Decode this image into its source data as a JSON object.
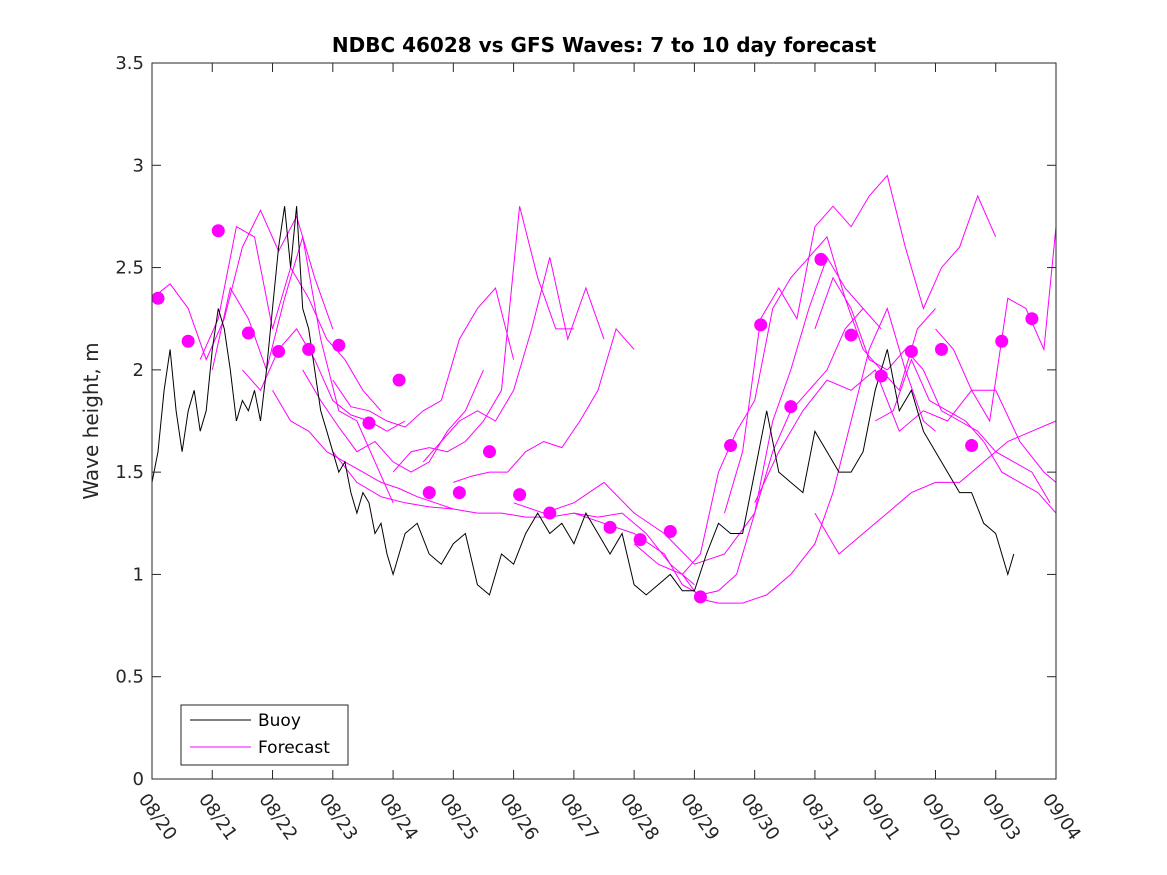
{
  "chart_data": {
    "type": "line",
    "title": "NDBC 46028 vs GFS Waves: 7 to 10 day forecast",
    "xlabel": "",
    "ylabel": "Wave height, m",
    "xlim": [
      0,
      15
    ],
    "ylim": [
      0,
      3.5
    ],
    "xticks": [
      0,
      1,
      2,
      3,
      4,
      5,
      6,
      7,
      8,
      9,
      10,
      11,
      12,
      13,
      14,
      15
    ],
    "xtick_labels": [
      "08/20",
      "08/21",
      "08/22",
      "08/23",
      "08/24",
      "08/25",
      "08/26",
      "08/27",
      "08/28",
      "08/29",
      "08/30",
      "08/31",
      "09/01",
      "09/02",
      "09/03",
      "09/04"
    ],
    "yticks": [
      0,
      0.5,
      1,
      1.5,
      2,
      2.5,
      3,
      3.5
    ],
    "ytick_labels": [
      "0",
      "0.5",
      "1",
      "1.5",
      "2",
      "2.5",
      "3",
      "3.5"
    ],
    "legend": {
      "location": "bottom-left",
      "entries": [
        "Buoy",
        "Forecast"
      ]
    },
    "colors": {
      "buoy": "#000000",
      "forecast": "#ff00ff",
      "axes": "#262626"
    },
    "buoy": {
      "name": "Buoy",
      "x": [
        0,
        0.1,
        0.2,
        0.3,
        0.4,
        0.5,
        0.6,
        0.7,
        0.8,
        0.9,
        1.0,
        1.1,
        1.2,
        1.3,
        1.4,
        1.5,
        1.6,
        1.7,
        1.8,
        1.9,
        2.0,
        2.1,
        2.2,
        2.3,
        2.4,
        2.5,
        2.6,
        2.7,
        2.8,
        2.9,
        3.0,
        3.1,
        3.2,
        3.3,
        3.4,
        3.5,
        3.6,
        3.7,
        3.8,
        3.9,
        4.0,
        4.2,
        4.4,
        4.6,
        4.8,
        5.0,
        5.2,
        5.4,
        5.6,
        5.8,
        6.0,
        6.2,
        6.4,
        6.6,
        6.8,
        7.0,
        7.2,
        7.4,
        7.6,
        7.8,
        8.0,
        8.2,
        8.4,
        8.6,
        8.8,
        9.0,
        9.2,
        9.4,
        9.6,
        9.8,
        10.0,
        10.2,
        10.4,
        10.6,
        10.8,
        11.0,
        11.2,
        11.4,
        11.6,
        11.8,
        12.0,
        12.2,
        12.4,
        12.6,
        12.8,
        13.0,
        13.2,
        13.4,
        13.6,
        13.8,
        14.0,
        14.1,
        14.2,
        14.3
      ],
      "y": [
        1.45,
        1.6,
        1.9,
        2.1,
        1.8,
        1.6,
        1.8,
        1.9,
        1.7,
        1.8,
        2.1,
        2.3,
        2.2,
        2.0,
        1.75,
        1.85,
        1.8,
        1.9,
        1.75,
        2.0,
        2.3,
        2.6,
        2.8,
        2.5,
        2.8,
        2.3,
        2.2,
        2.0,
        1.8,
        1.7,
        1.6,
        1.5,
        1.55,
        1.4,
        1.3,
        1.4,
        1.35,
        1.2,
        1.25,
        1.1,
        1.0,
        1.2,
        1.25,
        1.1,
        1.05,
        1.15,
        1.2,
        0.95,
        0.9,
        1.1,
        1.05,
        1.2,
        1.3,
        1.2,
        1.25,
        1.15,
        1.3,
        1.2,
        1.1,
        1.2,
        0.95,
        0.9,
        0.95,
        1.0,
        0.92,
        0.92,
        1.1,
        1.25,
        1.2,
        1.2,
        1.5,
        1.8,
        1.5,
        1.45,
        1.4,
        1.7,
        1.6,
        1.5,
        1.5,
        1.6,
        1.9,
        2.1,
        1.8,
        1.9,
        1.7,
        1.6,
        1.5,
        1.4,
        1.4,
        1.25,
        1.2,
        1.1,
        1.0,
        1.1
      ]
    },
    "forecasts": [
      {
        "name": "Forecast",
        "x": [
          0,
          0.3,
          0.6,
          0.9,
          1.2,
          1.5,
          1.8,
          2.1,
          2.4,
          2.7,
          3.0
        ],
        "y": [
          2.35,
          2.42,
          2.3,
          2.05,
          2.25,
          2.6,
          2.78,
          2.58,
          2.75,
          2.45,
          2.2
        ]
      },
      {
        "name": "Forecast",
        "x": [
          0.8,
          1.1,
          1.4,
          1.7,
          2.0,
          2.3,
          2.6,
          2.9,
          3.2,
          3.5,
          3.8
        ],
        "y": [
          2.05,
          2.25,
          2.7,
          2.65,
          2.2,
          2.5,
          2.35,
          2.15,
          2.05,
          1.9,
          1.8
        ]
      },
      {
        "name": "Forecast",
        "x": [
          1.0,
          1.3,
          1.6,
          1.9,
          2.2,
          2.5,
          2.8,
          3.1,
          3.4,
          3.7,
          4.0
        ],
        "y": [
          2.0,
          2.4,
          2.25,
          2.0,
          2.35,
          2.65,
          2.15,
          1.8,
          1.75,
          1.55,
          1.35
        ]
      },
      {
        "name": "Forecast",
        "x": [
          1.5,
          1.8,
          2.1,
          2.4,
          2.7,
          3.0,
          3.3,
          3.6,
          3.9,
          4.2
        ],
        "y": [
          2.0,
          1.9,
          2.1,
          2.2,
          2.05,
          1.85,
          1.78,
          1.75,
          1.7,
          1.75
        ]
      },
      {
        "name": "Forecast",
        "x": [
          2.0,
          2.3,
          2.6,
          2.9,
          3.2,
          3.5,
          3.8,
          4.1,
          4.4,
          4.7,
          5.0
        ],
        "y": [
          1.9,
          1.75,
          1.7,
          1.6,
          1.55,
          1.5,
          1.45,
          1.42,
          1.38,
          1.35,
          1.32
        ]
      },
      {
        "name": "Forecast",
        "x": [
          2.5,
          2.8,
          3.1,
          3.4,
          3.7,
          4.0,
          4.3,
          4.6,
          4.9,
          5.2,
          5.5
        ],
        "y": [
          2.0,
          1.85,
          1.72,
          1.6,
          1.65,
          1.55,
          1.5,
          1.55,
          1.7,
          1.8,
          2.0
        ]
      },
      {
        "name": "Forecast",
        "x": [
          3.0,
          3.3,
          3.6,
          3.9,
          4.2,
          4.5,
          4.8,
          5.1,
          5.4,
          5.7,
          6.0
        ],
        "y": [
          1.95,
          1.82,
          1.8,
          1.75,
          1.72,
          1.8,
          1.85,
          2.15,
          2.3,
          2.4,
          2.05
        ]
      },
      {
        "name": "Forecast",
        "x": [
          4.0,
          4.3,
          4.6,
          4.9,
          5.2,
          5.5,
          5.8,
          6.1,
          6.4,
          6.7,
          7.0
        ],
        "y": [
          1.5,
          1.6,
          1.62,
          1.6,
          1.65,
          1.75,
          1.9,
          2.8,
          2.45,
          2.2,
          2.2
        ]
      },
      {
        "name": "Forecast",
        "x": [
          4.5,
          4.8,
          5.1,
          5.4,
          5.7,
          6.0,
          6.3,
          6.6,
          6.9,
          7.2,
          7.5
        ],
        "y": [
          1.55,
          1.65,
          1.75,
          1.8,
          1.75,
          1.9,
          2.2,
          2.55,
          2.15,
          2.4,
          2.15
        ]
      },
      {
        "name": "Forecast",
        "x": [
          5.0,
          5.3,
          5.6,
          5.9,
          6.2,
          6.5,
          6.8,
          7.1,
          7.4,
          7.7,
          8.0
        ],
        "y": [
          1.45,
          1.48,
          1.5,
          1.5,
          1.6,
          1.65,
          1.62,
          1.75,
          1.9,
          2.2,
          2.1
        ]
      },
      {
        "name": "Forecast",
        "x": [
          3.0,
          3.4,
          3.8,
          4.2,
          4.6,
          5.0,
          5.4,
          5.8,
          6.2,
          6.6,
          7.0,
          7.4,
          7.8,
          8.2,
          8.6,
          9.0
        ],
        "y": [
          1.6,
          1.45,
          1.38,
          1.35,
          1.33,
          1.32,
          1.3,
          1.3,
          1.28,
          1.28,
          1.3,
          1.28,
          1.3,
          1.2,
          1.05,
          0.95
        ]
      },
      {
        "name": "Forecast",
        "x": [
          6.0,
          6.5,
          7.0,
          7.5,
          8.0,
          8.5,
          9.0,
          9.5,
          10.0,
          10.3,
          10.6,
          10.9,
          11.2,
          11.5,
          11.8
        ],
        "y": [
          1.35,
          1.3,
          1.35,
          1.45,
          1.3,
          1.2,
          1.05,
          1.1,
          1.3,
          1.6,
          1.8,
          1.9,
          2.0,
          2.2,
          2.3
        ]
      },
      {
        "name": "Forecast",
        "x": [
          7.0,
          7.5,
          8.0,
          8.5,
          8.8,
          9.1,
          9.4,
          9.7,
          10.0,
          10.3,
          10.6,
          10.9,
          11.2,
          11.5,
          11.8,
          12.1
        ],
        "y": [
          1.3,
          1.25,
          1.2,
          1.1,
          0.95,
          0.9,
          0.92,
          1.0,
          1.3,
          1.75,
          2.0,
          2.3,
          2.55,
          2.4,
          2.3,
          2.2
        ]
      },
      {
        "name": "Forecast",
        "x": [
          8.0,
          8.4,
          8.8,
          9.1,
          9.4,
          9.8,
          10.2,
          10.6,
          11.0,
          11.3,
          11.6,
          11.9,
          12.2,
          12.5,
          12.8,
          13.0
        ],
        "y": [
          1.15,
          1.05,
          1.0,
          0.88,
          0.86,
          0.86,
          0.9,
          1.0,
          1.15,
          1.4,
          1.75,
          2.1,
          2.3,
          2.0,
          1.75,
          1.7
        ]
      },
      {
        "name": "Forecast",
        "x": [
          8.8,
          9.1,
          9.4,
          9.7,
          10.0,
          10.3,
          10.6,
          10.9,
          11.2,
          11.5,
          11.8,
          12.1,
          12.4,
          12.7,
          13.0
        ],
        "y": [
          1.0,
          1.1,
          1.5,
          1.7,
          1.85,
          2.3,
          2.45,
          2.55,
          2.65,
          2.35,
          2.1,
          2.0,
          1.9,
          2.2,
          2.3
        ]
      },
      {
        "name": "Forecast",
        "x": [
          9.5,
          9.8,
          10.1,
          10.4,
          10.7,
          11.0,
          11.3,
          11.6,
          11.9,
          12.2,
          12.5,
          12.8,
          13.1,
          13.4,
          13.7,
          14.0
        ],
        "y": [
          1.3,
          1.6,
          2.25,
          2.4,
          2.25,
          2.7,
          2.8,
          2.7,
          2.85,
          2.95,
          2.6,
          2.3,
          2.5,
          2.6,
          2.85,
          2.65
        ]
      },
      {
        "name": "Forecast",
        "x": [
          10.0,
          10.4,
          10.8,
          11.2,
          11.6,
          12.0,
          12.4,
          12.8,
          13.2,
          13.6,
          14.0,
          14.4,
          14.8,
          15.0
        ],
        "y": [
          1.35,
          1.6,
          1.8,
          1.95,
          1.9,
          2.0,
          1.7,
          1.8,
          1.75,
          1.9,
          1.9,
          1.65,
          1.5,
          1.45
        ]
      },
      {
        "name": "Forecast",
        "x": [
          11.0,
          11.3,
          11.6,
          11.9,
          12.2,
          12.5,
          12.8,
          13.1,
          13.4,
          13.7,
          14.0,
          14.3,
          14.6,
          14.9
        ],
        "y": [
          2.2,
          2.45,
          2.3,
          2.05,
          2.0,
          2.1,
          2.0,
          1.8,
          1.75,
          1.7,
          1.6,
          1.55,
          1.5,
          1.35
        ]
      },
      {
        "name": "Forecast",
        "x": [
          11.0,
          11.4,
          11.8,
          12.2,
          12.6,
          13.0,
          13.4,
          13.8,
          14.2,
          14.6,
          15.0
        ],
        "y": [
          1.3,
          1.1,
          1.2,
          1.3,
          1.4,
          1.45,
          1.45,
          1.55,
          1.65,
          1.7,
          1.75
        ]
      },
      {
        "name": "Forecast",
        "x": [
          12.0,
          12.3,
          12.6,
          12.9,
          13.2,
          13.5,
          13.8,
          14.1,
          14.4,
          14.7,
          15.0
        ],
        "y": [
          1.75,
          1.8,
          2.05,
          1.85,
          1.8,
          1.75,
          1.65,
          1.5,
          1.45,
          1.4,
          1.3
        ]
      },
      {
        "name": "Forecast",
        "x": [
          13.0,
          13.3,
          13.6,
          13.9,
          14.2,
          14.5,
          14.8,
          15.0
        ],
        "y": [
          2.2,
          2.1,
          1.9,
          1.75,
          2.35,
          2.3,
          2.1,
          2.7
        ]
      }
    ],
    "forecast_points": {
      "x": [
        0.1,
        0.6,
        1.1,
        1.6,
        2.1,
        2.6,
        3.1,
        3.6,
        4.1,
        4.6,
        5.1,
        5.6,
        6.1,
        6.6,
        7.6,
        8.1,
        8.6,
        9.1,
        9.6,
        10.1,
        10.6,
        11.1,
        11.6,
        12.1,
        12.6,
        13.1,
        13.6,
        14.1,
        14.6
      ],
      "y": [
        2.35,
        2.14,
        2.68,
        2.18,
        2.09,
        2.1,
        2.12,
        1.74,
        1.95,
        1.4,
        1.4,
        1.6,
        1.39,
        1.3,
        1.23,
        1.17,
        1.21,
        0.89,
        1.63,
        2.22,
        1.82,
        2.54,
        2.17,
        1.97,
        2.09,
        2.1,
        1.63,
        2.14,
        2.25
      ]
    }
  }
}
